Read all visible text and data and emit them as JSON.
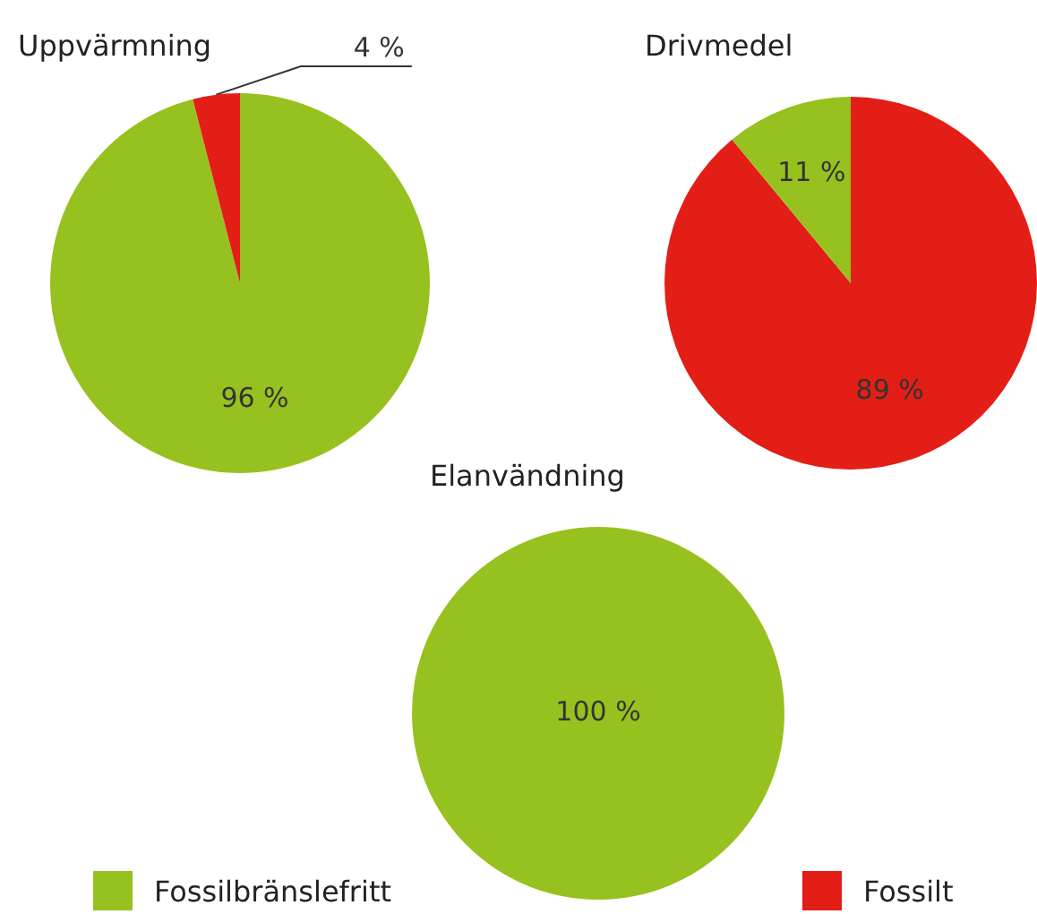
{
  "chart_data": [
    {
      "type": "pie",
      "title": "Uppvärmning",
      "categories": [
        "Fossilbränslefritt",
        "Fossilt"
      ],
      "values": [
        96,
        4
      ],
      "colors": [
        "#97c11f",
        "#e31e16"
      ],
      "value_labels": [
        "96 %",
        "4 %"
      ],
      "legend": "bottom"
    },
    {
      "type": "pie",
      "title": "Drivmedel",
      "categories": [
        null,
        null
      ],
      "values": [
        89,
        11
      ],
      "colors": [
        "#e31e16",
        "#97c11f"
      ],
      "value_labels": [
        "89 %",
        "11 %"
      ]
    },
    {
      "type": "pie",
      "title": "Elanvändning",
      "categories": [
        null,
        null
      ],
      "values": [
        100,
        0
      ],
      "colors": [
        "#97c11f",
        "#e31e16"
      ],
      "value_labels": [
        "100 %",
        null
      ]
    }
  ]
}
